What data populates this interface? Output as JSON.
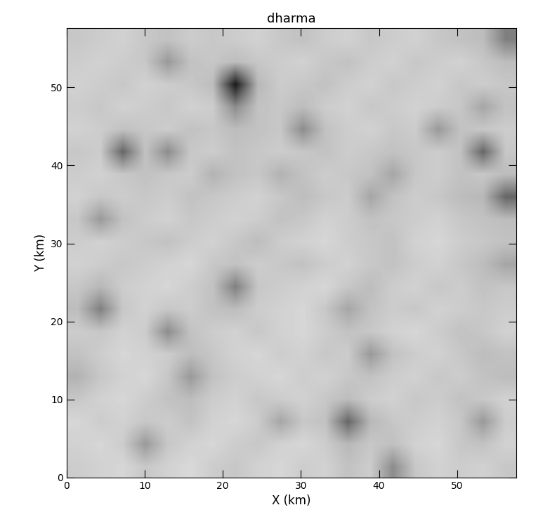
{
  "chart_data": {
    "type": "heatmap",
    "title": "dharma",
    "x_label": "X (km)",
    "y_label": "Y (km)",
    "xlim": [
      0,
      57.6
    ],
    "ylim": [
      0,
      57.6
    ],
    "xticks": [
      0,
      10,
      20,
      30,
      40,
      50
    ],
    "yticks": [
      0,
      10,
      20,
      30,
      40,
      50
    ],
    "color_range": [
      0,
      100
    ],
    "cells": [
      [
        20,
        18,
        16,
        22,
        18,
        15,
        20,
        22,
        18,
        16,
        20,
        18,
        24,
        20,
        45,
        22,
        18,
        20,
        18,
        22
      ],
      [
        18,
        16,
        20,
        40,
        22,
        18,
        16,
        20,
        22,
        18,
        16,
        20,
        28,
        22,
        25,
        18,
        16,
        22,
        24,
        18
      ],
      [
        16,
        20,
        18,
        22,
        20,
        24,
        18,
        16,
        20,
        35,
        22,
        24,
        60,
        28,
        22,
        20,
        18,
        22,
        40,
        20
      ],
      [
        22,
        18,
        16,
        20,
        24,
        26,
        20,
        18,
        22,
        20,
        18,
        22,
        26,
        20,
        18,
        22,
        20,
        24,
        22,
        18
      ],
      [
        30,
        22,
        18,
        16,
        22,
        40,
        24,
        20,
        18,
        16,
        20,
        18,
        22,
        24,
        20,
        18,
        22,
        20,
        24,
        26
      ],
      [
        24,
        20,
        16,
        18,
        20,
        26,
        22,
        18,
        16,
        20,
        18,
        22,
        20,
        40,
        24,
        20,
        18,
        22,
        26,
        24
      ],
      [
        20,
        22,
        18,
        20,
        45,
        24,
        20,
        18,
        22,
        18,
        16,
        20,
        24,
        22,
        18,
        16,
        20,
        24,
        22,
        18
      ],
      [
        26,
        50,
        22,
        18,
        22,
        20,
        24,
        26,
        20,
        18,
        16,
        22,
        35,
        24,
        20,
        22,
        18,
        20,
        22,
        20
      ],
      [
        22,
        28,
        20,
        18,
        16,
        20,
        24,
        50,
        22,
        20,
        18,
        16,
        22,
        26,
        20,
        18,
        22,
        20,
        24,
        22
      ],
      [
        18,
        20,
        22,
        20,
        18,
        16,
        22,
        24,
        20,
        22,
        24,
        20,
        18,
        22,
        24,
        20,
        18,
        22,
        26,
        35
      ],
      [
        20,
        18,
        20,
        22,
        24,
        20,
        18,
        22,
        26,
        20,
        18,
        16,
        20,
        22,
        24,
        18,
        16,
        20,
        22,
        24
      ],
      [
        22,
        40,
        24,
        20,
        18,
        22,
        20,
        18,
        20,
        24,
        22,
        18,
        20,
        24,
        22,
        20,
        18,
        22,
        24,
        26
      ],
      [
        18,
        22,
        20,
        22,
        20,
        24,
        22,
        20,
        18,
        22,
        26,
        22,
        20,
        35,
        24,
        20,
        22,
        26,
        28,
        60
      ],
      [
        20,
        18,
        22,
        24,
        22,
        20,
        30,
        24,
        22,
        30,
        24,
        20,
        22,
        24,
        35,
        22,
        20,
        24,
        22,
        26
      ],
      [
        22,
        20,
        60,
        24,
        45,
        22,
        20,
        24,
        22,
        20,
        22,
        24,
        20,
        22,
        24,
        22,
        20,
        24,
        60,
        22
      ],
      [
        18,
        20,
        24,
        22,
        20,
        24,
        22,
        26,
        24,
        22,
        45,
        24,
        20,
        18,
        22,
        20,
        40,
        24,
        22,
        20
      ],
      [
        20,
        22,
        18,
        20,
        22,
        18,
        20,
        45,
        24,
        22,
        26,
        20,
        18,
        22,
        20,
        18,
        20,
        22,
        35,
        24
      ],
      [
        18,
        20,
        22,
        18,
        20,
        22,
        26,
        90,
        28,
        20,
        22,
        24,
        20,
        18,
        22,
        20,
        18,
        22,
        20,
        22
      ],
      [
        20,
        18,
        20,
        22,
        40,
        24,
        22,
        26,
        22,
        20,
        18,
        22,
        24,
        20,
        18,
        22,
        20,
        18,
        22,
        26
      ],
      [
        22,
        20,
        18,
        22,
        24,
        20,
        22,
        20,
        18,
        22,
        24,
        20,
        18,
        22,
        20,
        18,
        22,
        24,
        26,
        50
      ]
    ]
  }
}
